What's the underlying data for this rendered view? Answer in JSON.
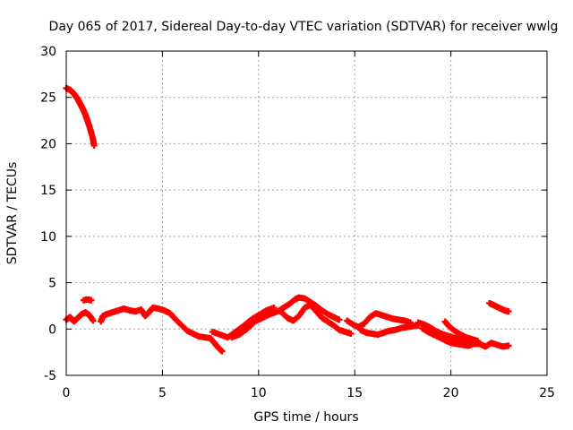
{
  "chart_data": {
    "type": "scatter",
    "title": "Day 065 of 2017, Sidereal Day-to-day VTEC variation (SDTVAR) for receiver wwlg",
    "xlabel": "GPS time / hours",
    "ylabel": "SDTVAR / TECUs",
    "xlim": [
      0,
      25
    ],
    "ylim": [
      -5,
      30
    ],
    "xticks": [
      "0",
      "5",
      "10",
      "15",
      "20",
      "25"
    ],
    "yticks": [
      "-5",
      "0",
      "5",
      "10",
      "15",
      "20",
      "25",
      "30"
    ],
    "grid": true,
    "series": [
      {
        "name": "SDTVAR",
        "color": "#ff0000",
        "marker": "plus",
        "points": [
          [
            0.0,
            26.0
          ],
          [
            0.1,
            25.9
          ],
          [
            0.2,
            25.8
          ],
          [
            0.3,
            25.6
          ],
          [
            0.4,
            25.4
          ],
          [
            0.5,
            25.1
          ],
          [
            0.6,
            24.8
          ],
          [
            0.7,
            24.4
          ],
          [
            0.8,
            24.0
          ],
          [
            0.9,
            23.6
          ],
          [
            1.0,
            23.1
          ],
          [
            1.1,
            22.5
          ],
          [
            1.2,
            21.9
          ],
          [
            1.3,
            21.2
          ],
          [
            1.4,
            20.4
          ],
          [
            1.45,
            19.8
          ],
          [
            0.0,
            1.0
          ],
          [
            0.2,
            1.3
          ],
          [
            0.4,
            0.8
          ],
          [
            0.6,
            1.2
          ],
          [
            0.8,
            1.6
          ],
          [
            1.0,
            1.8
          ],
          [
            1.2,
            1.5
          ],
          [
            1.4,
            0.9
          ],
          [
            0.9,
            3.1
          ],
          [
            1.1,
            3.2
          ],
          [
            1.3,
            3.1
          ],
          [
            1.8,
            0.8
          ],
          [
            1.9,
            1.4
          ],
          [
            2.1,
            1.6
          ],
          [
            2.4,
            1.8
          ],
          [
            2.7,
            2.0
          ],
          [
            3.0,
            2.2
          ],
          [
            3.3,
            2.0
          ],
          [
            3.6,
            1.9
          ],
          [
            3.9,
            2.1
          ],
          [
            4.1,
            1.4
          ],
          [
            4.3,
            1.8
          ],
          [
            4.5,
            2.3
          ],
          [
            4.8,
            2.2
          ],
          [
            5.1,
            2.0
          ],
          [
            5.4,
            1.7
          ],
          [
            5.7,
            1.0
          ],
          [
            6.0,
            0.4
          ],
          [
            6.3,
            -0.2
          ],
          [
            6.6,
            -0.5
          ],
          [
            6.9,
            -0.8
          ],
          [
            7.2,
            -0.9
          ],
          [
            7.5,
            -1.0
          ],
          [
            7.7,
            -1.5
          ],
          [
            7.9,
            -2.0
          ],
          [
            8.1,
            -2.4
          ],
          [
            7.6,
            -0.3
          ],
          [
            8.0,
            -0.6
          ],
          [
            8.4,
            -0.9
          ],
          [
            8.8,
            -0.3
          ],
          [
            9.2,
            0.3
          ],
          [
            9.6,
            1.0
          ],
          [
            10.0,
            1.5
          ],
          [
            10.4,
            2.0
          ],
          [
            10.8,
            2.3
          ],
          [
            8.6,
            -0.9
          ],
          [
            9.0,
            -0.6
          ],
          [
            9.4,
            0.0
          ],
          [
            9.8,
            0.8
          ],
          [
            10.2,
            1.2
          ],
          [
            10.6,
            1.6
          ],
          [
            11.0,
            1.9
          ],
          [
            11.3,
            2.3
          ],
          [
            11.6,
            2.7
          ],
          [
            11.9,
            3.2
          ],
          [
            12.1,
            3.4
          ],
          [
            12.4,
            3.3
          ],
          [
            12.7,
            2.9
          ],
          [
            13.0,
            2.5
          ],
          [
            13.3,
            2.0
          ],
          [
            13.6,
            1.6
          ],
          [
            13.9,
            1.3
          ],
          [
            14.2,
            1.0
          ],
          [
            11.2,
            1.8
          ],
          [
            11.5,
            1.2
          ],
          [
            11.8,
            0.9
          ],
          [
            12.1,
            1.4
          ],
          [
            12.4,
            2.3
          ],
          [
            12.7,
            2.6
          ],
          [
            13.0,
            1.9
          ],
          [
            13.3,
            1.2
          ],
          [
            13.6,
            0.8
          ],
          [
            13.9,
            0.4
          ],
          [
            14.2,
            -0.1
          ],
          [
            14.5,
            -0.3
          ],
          [
            14.8,
            -0.5
          ],
          [
            14.6,
            0.9
          ],
          [
            14.9,
            0.5
          ],
          [
            15.2,
            0.2
          ],
          [
            15.5,
            0.6
          ],
          [
            15.8,
            1.3
          ],
          [
            16.1,
            1.7
          ],
          [
            16.4,
            1.5
          ],
          [
            16.7,
            1.3
          ],
          [
            17.0,
            1.1
          ],
          [
            17.3,
            1.0
          ],
          [
            17.6,
            0.9
          ],
          [
            17.9,
            0.7
          ],
          [
            15.3,
            -0.1
          ],
          [
            15.6,
            -0.4
          ],
          [
            15.9,
            -0.5
          ],
          [
            16.2,
            -0.6
          ],
          [
            16.5,
            -0.4
          ],
          [
            16.8,
            -0.2
          ],
          [
            17.1,
            -0.1
          ],
          [
            17.4,
            0.1
          ],
          [
            17.7,
            0.2
          ],
          [
            18.0,
            0.3
          ],
          [
            18.3,
            0.4
          ],
          [
            18.3,
            0.7
          ],
          [
            18.6,
            0.5
          ],
          [
            18.9,
            0.2
          ],
          [
            19.2,
            -0.2
          ],
          [
            19.5,
            -0.5
          ],
          [
            19.8,
            -0.7
          ],
          [
            20.1,
            -0.9
          ],
          [
            20.4,
            -1.1
          ],
          [
            20.7,
            -1.3
          ],
          [
            21.0,
            -1.4
          ],
          [
            18.5,
            0.1
          ],
          [
            18.8,
            -0.3
          ],
          [
            19.1,
            -0.6
          ],
          [
            19.4,
            -0.9
          ],
          [
            19.7,
            -1.2
          ],
          [
            20.0,
            -1.5
          ],
          [
            20.3,
            -1.6
          ],
          [
            20.6,
            -1.7
          ],
          [
            20.9,
            -1.8
          ],
          [
            21.2,
            -1.6
          ],
          [
            21.5,
            -1.6
          ],
          [
            21.8,
            -1.9
          ],
          [
            22.1,
            -1.5
          ],
          [
            22.4,
            -1.7
          ],
          [
            22.7,
            -1.9
          ],
          [
            23.0,
            -1.8
          ],
          [
            19.7,
            0.8
          ],
          [
            19.9,
            0.3
          ],
          [
            20.2,
            -0.2
          ],
          [
            20.5,
            -0.6
          ],
          [
            20.8,
            -0.9
          ],
          [
            21.1,
            -1.1
          ],
          [
            21.4,
            -1.3
          ],
          [
            22.0,
            2.8
          ],
          [
            22.2,
            2.6
          ],
          [
            22.4,
            2.4
          ],
          [
            22.6,
            2.2
          ],
          [
            22.8,
            2.0
          ],
          [
            23.0,
            1.9
          ]
        ]
      }
    ]
  }
}
